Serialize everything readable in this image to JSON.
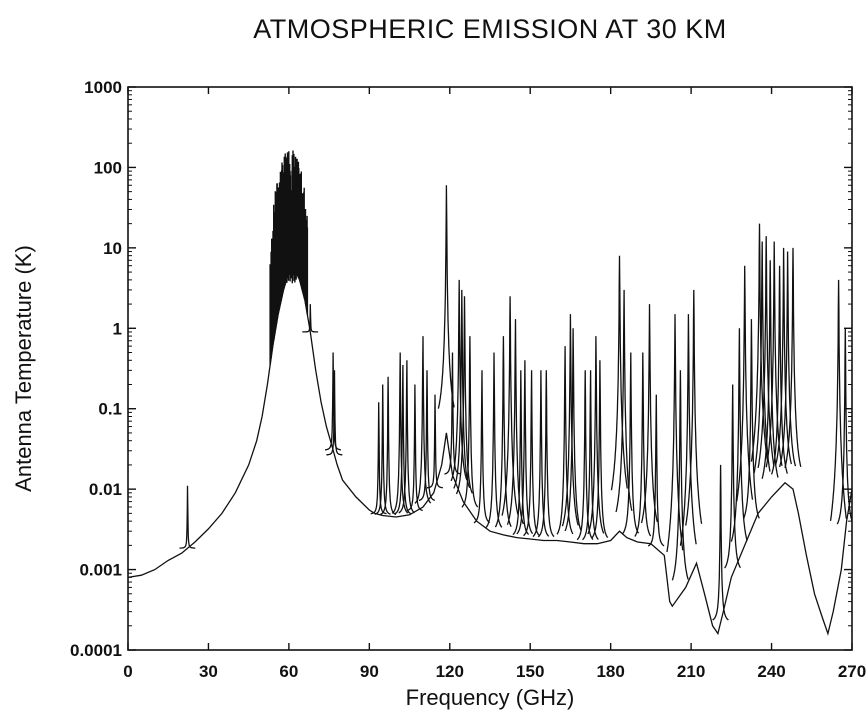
{
  "chart_data": {
    "type": "line",
    "title": "ATMOSPHERIC EMISSION AT 30 KM",
    "xlabel": "Frequency (GHz)",
    "ylabel": "Antenna Temperature (K)",
    "xlim": [
      0,
      270
    ],
    "ylim": [
      0.0001,
      1000
    ],
    "y_scale": "log",
    "grid": false,
    "x_ticks": [
      "0",
      "30",
      "60",
      "90",
      "120",
      "150",
      "180",
      "210",
      "240",
      "270"
    ],
    "y_ticks": [
      "0.0001",
      "0.001",
      "0.01",
      "0.1",
      "1",
      "10",
      "100",
      "1000"
    ],
    "background": [
      [
        0,
        0.0008
      ],
      [
        5,
        0.00085
      ],
      [
        10,
        0.001
      ],
      [
        15,
        0.0013
      ],
      [
        20,
        0.0016
      ],
      [
        25,
        0.0022
      ],
      [
        30,
        0.0032
      ],
      [
        35,
        0.005
      ],
      [
        40,
        0.009
      ],
      [
        45,
        0.02
      ],
      [
        48,
        0.04
      ],
      [
        50,
        0.08
      ],
      [
        52,
        0.2
      ],
      [
        54,
        0.6
      ],
      [
        56,
        1.5
      ],
      [
        58,
        3
      ],
      [
        60,
        5
      ],
      [
        62,
        5.5
      ],
      [
        64,
        4
      ],
      [
        66,
        2.2
      ],
      [
        68,
        0.9
      ],
      [
        70,
        0.3
      ],
      [
        72,
        0.12
      ],
      [
        74,
        0.06
      ],
      [
        76,
        0.035
      ],
      [
        78,
        0.02
      ],
      [
        80,
        0.013
      ],
      [
        85,
        0.008
      ],
      [
        90,
        0.0055
      ],
      [
        92,
        0.005
      ],
      [
        95,
        0.0047
      ],
      [
        100,
        0.0045
      ],
      [
        105,
        0.0048
      ],
      [
        110,
        0.006
      ],
      [
        114,
        0.009
      ],
      [
        117,
        0.02
      ],
      [
        118.75,
        0.05
      ],
      [
        121,
        0.015
      ],
      [
        125,
        0.007
      ],
      [
        130,
        0.004
      ],
      [
        135,
        0.003
      ],
      [
        140,
        0.0027
      ],
      [
        145,
        0.0025
      ],
      [
        150,
        0.0024
      ],
      [
        155,
        0.0023
      ],
      [
        160,
        0.0023
      ],
      [
        165,
        0.0022
      ],
      [
        170,
        0.0021
      ],
      [
        175,
        0.0021
      ],
      [
        180,
        0.0023
      ],
      [
        183.3,
        0.003
      ],
      [
        186,
        0.0025
      ],
      [
        190,
        0.0022
      ],
      [
        195,
        0.0021
      ],
      [
        200,
        0.0015
      ],
      [
        202,
        0.0004
      ],
      [
        203,
        0.00035
      ],
      [
        208,
        0.0006
      ],
      [
        212,
        0.0012
      ],
      [
        215,
        0.0005
      ],
      [
        218,
        0.0002
      ],
      [
        220,
        0.00016
      ],
      [
        222,
        0.0003
      ],
      [
        225,
        0.0008
      ],
      [
        230,
        0.002
      ],
      [
        235,
        0.005
      ],
      [
        240,
        0.008
      ],
      [
        245,
        0.012
      ],
      [
        248,
        0.01
      ],
      [
        250,
        0.005
      ],
      [
        253,
        0.0015
      ],
      [
        256,
        0.0005
      ],
      [
        259,
        0.00025
      ],
      [
        261,
        0.00016
      ],
      [
        263,
        0.0003
      ],
      [
        266,
        0.001
      ],
      [
        268,
        0.004
      ],
      [
        270,
        0.01
      ]
    ],
    "o2_band_60ghz": {
      "x_range": [
        53,
        67
      ],
      "lower_envelope_K": 6,
      "upper_envelope_K": 200
    },
    "spectral_lines": [
      [
        22.2,
        0.011
      ],
      [
        68.0,
        2.0
      ],
      [
        76.5,
        0.5
      ],
      [
        77.0,
        0.3
      ],
      [
        93.5,
        0.12
      ],
      [
        95.0,
        0.2
      ],
      [
        97.0,
        0.25
      ],
      [
        101.5,
        0.5
      ],
      [
        102.5,
        0.35
      ],
      [
        104.0,
        0.4
      ],
      [
        107.0,
        0.2
      ],
      [
        110.0,
        0.8
      ],
      [
        111.5,
        0.3
      ],
      [
        114.5,
        0.15
      ],
      [
        118.75,
        60
      ],
      [
        121.0,
        0.5
      ],
      [
        123.5,
        4
      ],
      [
        124.5,
        3
      ],
      [
        125.5,
        2.5
      ],
      [
        127.5,
        0.8
      ],
      [
        132.0,
        0.3
      ],
      [
        136.5,
        0.5
      ],
      [
        140.0,
        0.8
      ],
      [
        142.5,
        2.5
      ],
      [
        144.5,
        1.3
      ],
      [
        146.5,
        0.3
      ],
      [
        148.0,
        0.4
      ],
      [
        150.5,
        0.3
      ],
      [
        154.0,
        0.3
      ],
      [
        156.0,
        0.3
      ],
      [
        163.0,
        0.6
      ],
      [
        165.0,
        1.5
      ],
      [
        166.0,
        1.0
      ],
      [
        170.5,
        0.3
      ],
      [
        172.5,
        0.3
      ],
      [
        174.5,
        0.8
      ],
      [
        176.0,
        0.4
      ],
      [
        183.3,
        8
      ],
      [
        185.0,
        3
      ],
      [
        187.5,
        0.5
      ],
      [
        192.0,
        0.5
      ],
      [
        194.5,
        2
      ],
      [
        197.0,
        0.15
      ],
      [
        204.0,
        1.5
      ],
      [
        206.0,
        0.3
      ],
      [
        209.0,
        1.5
      ],
      [
        211.0,
        3
      ],
      [
        221.0,
        0.02
      ],
      [
        225.5,
        0.2
      ],
      [
        228.0,
        1
      ],
      [
        230.0,
        6
      ],
      [
        232.5,
        1.3
      ],
      [
        235.5,
        20
      ],
      [
        236.5,
        12
      ],
      [
        238.0,
        14
      ],
      [
        239.5,
        7
      ],
      [
        241.0,
        12
      ],
      [
        243.0,
        6
      ],
      [
        244.5,
        10
      ],
      [
        246.0,
        9
      ],
      [
        248.0,
        10
      ],
      [
        265.0,
        4
      ],
      [
        267.5,
        1
      ]
    ]
  }
}
